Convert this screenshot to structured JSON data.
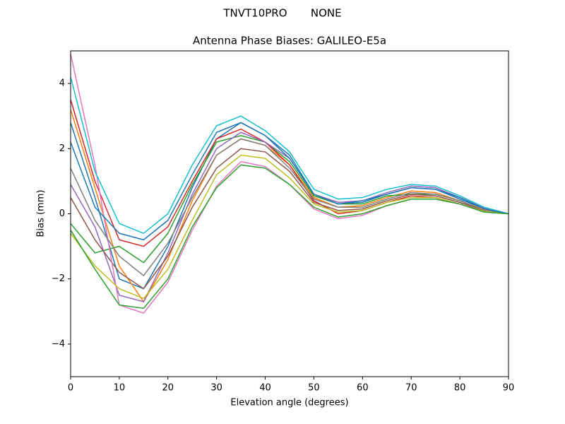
{
  "chart_data": {
    "type": "line",
    "suptitle": "TNVT10PRO       NONE",
    "title": "Antenna Phase Biases: GALILEO-E5a",
    "x_label": "Elevation angle (degrees)",
    "y_label": "Bias (mm)",
    "x": [
      0,
      5,
      10,
      15,
      20,
      25,
      30,
      35,
      40,
      45,
      50,
      55,
      60,
      65,
      70,
      75,
      80,
      85,
      90
    ],
    "xlim": [
      0,
      90
    ],
    "xticks": [
      0,
      10,
      20,
      30,
      40,
      50,
      60,
      70,
      80,
      90
    ],
    "ylim": [
      -5,
      5
    ],
    "yticks": [
      {
        "value": -4,
        "label": "−4"
      },
      {
        "value": -2,
        "label": "−2"
      },
      0,
      2,
      4
    ],
    "series": [
      {
        "color": "#1f77b4",
        "values": [
          2.8,
          0.5,
          -2.0,
          -2.3,
          -1.0,
          0.8,
          2.3,
          2.8,
          2.4,
          1.8,
          0.6,
          0.3,
          0.35,
          0.6,
          0.8,
          0.75,
          0.45,
          0.15,
          0
        ]
      },
      {
        "color": "#ff7f0e",
        "values": [
          3.2,
          0.8,
          -1.6,
          -2.7,
          -1.4,
          0.4,
          1.8,
          2.3,
          2.1,
          1.5,
          0.5,
          0.2,
          0.25,
          0.5,
          0.7,
          0.65,
          0.4,
          0.12,
          0
        ]
      },
      {
        "color": "#2ca02c",
        "values": [
          -0.3,
          -1.2,
          -1.0,
          -1.5,
          -0.6,
          0.9,
          2.2,
          2.4,
          2.2,
          1.6,
          0.55,
          0.3,
          0.3,
          0.55,
          0.6,
          0.6,
          0.4,
          0.1,
          0
        ]
      },
      {
        "color": "#d62728",
        "values": [
          3.5,
          1.0,
          -0.8,
          -1.0,
          -0.4,
          1.0,
          2.3,
          2.6,
          2.2,
          1.5,
          0.4,
          0.0,
          0.1,
          0.35,
          0.55,
          0.5,
          0.3,
          0.08,
          0
        ]
      },
      {
        "color": "#9467bd",
        "values": [
          0.9,
          -0.4,
          -2.5,
          -2.7,
          -1.2,
          0.6,
          2.0,
          2.5,
          2.2,
          1.7,
          0.6,
          0.35,
          0.4,
          0.65,
          0.85,
          0.8,
          0.5,
          0.18,
          0
        ]
      },
      {
        "color": "#8c564b",
        "values": [
          0.5,
          -0.8,
          -1.8,
          -2.3,
          -1.3,
          0.2,
          1.4,
          2.0,
          1.9,
          1.3,
          0.35,
          0.1,
          0.15,
          0.4,
          0.6,
          0.55,
          0.35,
          0.1,
          0
        ]
      },
      {
        "color": "#e377c2",
        "values": [
          4.9,
          1.5,
          -2.8,
          -3.05,
          -2.1,
          -0.5,
          0.85,
          1.6,
          1.45,
          0.9,
          0.15,
          -0.15,
          -0.05,
          0.25,
          0.45,
          0.45,
          0.3,
          0.05,
          0
        ]
      },
      {
        "color": "#7f7f7f",
        "values": [
          1.4,
          -0.2,
          -1.3,
          -1.9,
          -0.9,
          0.5,
          1.8,
          2.3,
          2.1,
          1.4,
          0.45,
          0.2,
          0.2,
          0.45,
          0.65,
          0.6,
          0.4,
          0.1,
          0
        ]
      },
      {
        "color": "#bcbd22",
        "values": [
          -0.6,
          -1.6,
          -2.3,
          -2.6,
          -1.7,
          -0.2,
          1.2,
          1.8,
          1.7,
          1.1,
          0.3,
          0.05,
          0.1,
          0.35,
          0.5,
          0.5,
          0.3,
          0.07,
          0
        ]
      },
      {
        "color": "#17becf",
        "values": [
          4.2,
          1.3,
          -0.3,
          -0.6,
          0.0,
          1.5,
          2.7,
          3.0,
          2.55,
          1.9,
          0.75,
          0.45,
          0.5,
          0.75,
          0.9,
          0.85,
          0.55,
          0.2,
          0
        ]
      },
      {
        "color": "#1f77b4",
        "values": [
          2.2,
          0.2,
          -0.6,
          -0.8,
          -0.2,
          1.2,
          2.5,
          2.8,
          2.4,
          1.7,
          0.6,
          0.3,
          0.4,
          0.6,
          0.8,
          0.75,
          0.5,
          0.15,
          0
        ]
      },
      {
        "color": "#2ca02c",
        "values": [
          -0.5,
          -1.7,
          -2.8,
          -2.9,
          -2.0,
          -0.4,
          0.8,
          1.5,
          1.4,
          0.9,
          0.2,
          -0.1,
          0.0,
          0.25,
          0.45,
          0.45,
          0.3,
          0.05,
          0
        ]
      }
    ]
  }
}
